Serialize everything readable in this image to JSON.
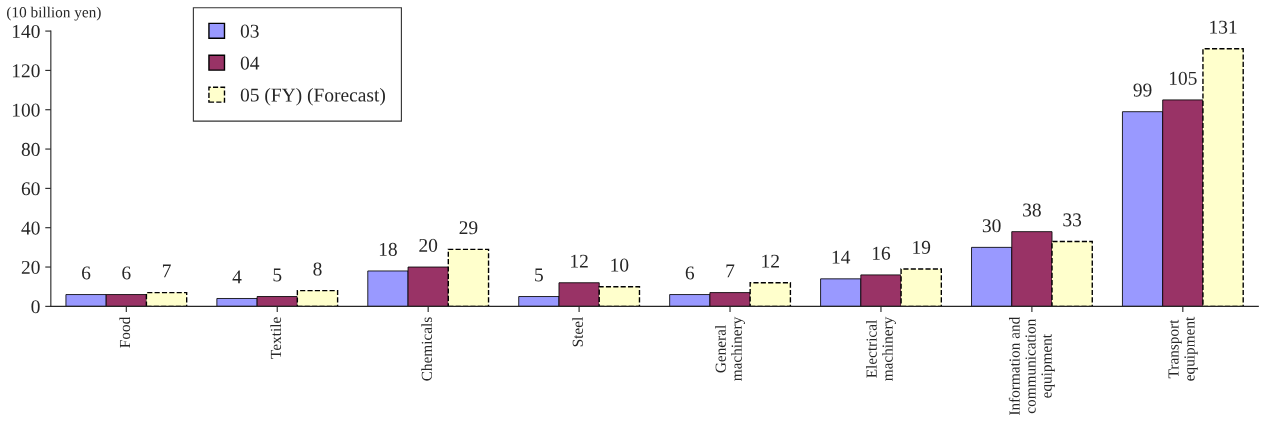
{
  "chart_data": {
    "type": "bar",
    "ylabel": "(10 billion yen)",
    "categories": [
      "Food",
      "Textile",
      "Chemicals",
      "Steel",
      "General\nmachinery",
      "Electrical\nmachinery",
      "Information and\ncommunication\nequipment",
      "Transport\nequipment"
    ],
    "series": [
      {
        "name": "03",
        "color": "#9999ff",
        "values": [
          6,
          4,
          18,
          5,
          6,
          14,
          30,
          99
        ]
      },
      {
        "name": "04",
        "color": "#993366",
        "values": [
          6,
          5,
          20,
          12,
          7,
          16,
          38,
          105
        ]
      },
      {
        "name": "05 (FY) (Forecast)",
        "color": "#ffffcc",
        "line_style": "dashed",
        "values": [
          7,
          8,
          29,
          10,
          12,
          19,
          33,
          131
        ]
      }
    ],
    "ylim": [
      0,
      140
    ],
    "yticks": [
      0,
      20,
      40,
      60,
      80,
      100,
      120,
      140
    ],
    "data_labels": true,
    "legend": "top left",
    "grid": false
  }
}
